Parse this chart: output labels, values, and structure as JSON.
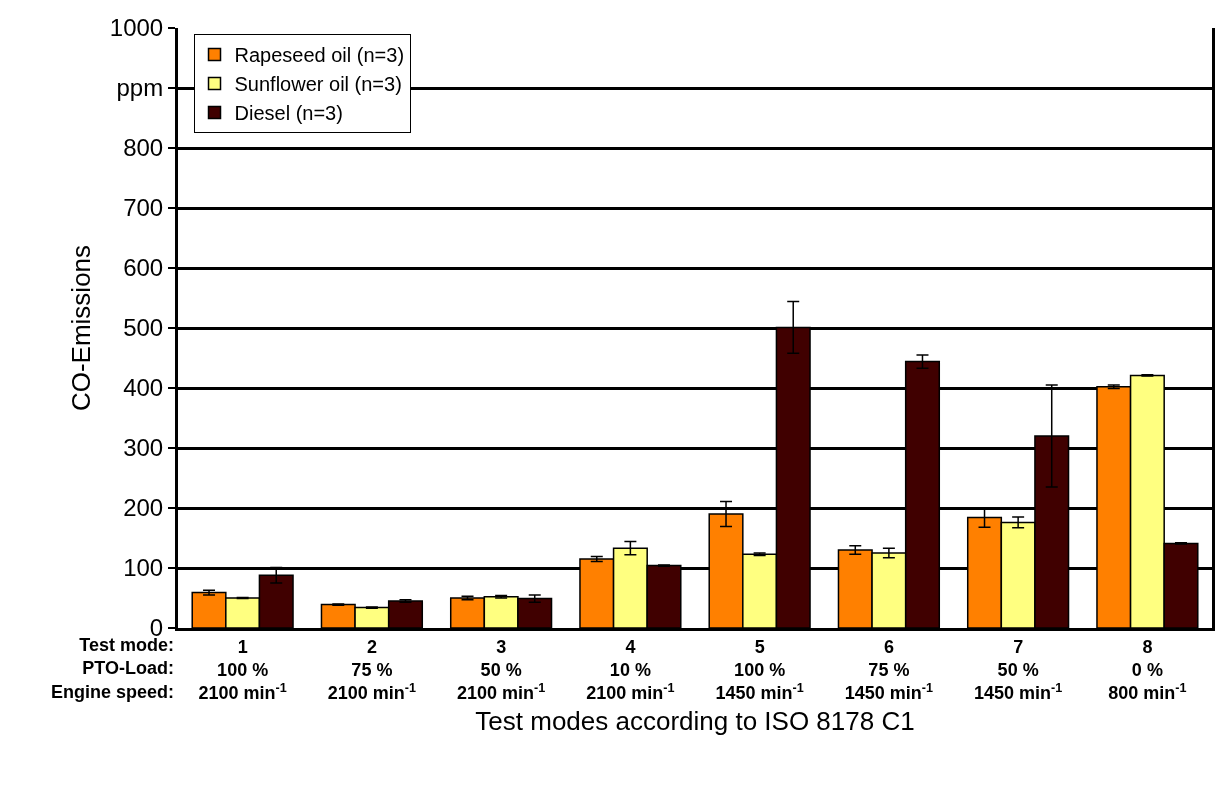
{
  "chart_data": {
    "type": "bar",
    "xlabel": "Test modes according to ISO 8178 C1",
    "ylabel": "CO-Emissions",
    "categories": [
      "1\n100 %\n2100 min$^{-1}$",
      "2\n75 %\n2100 min$^{-1}$",
      "3\n50 %\n2100 min$^{-1}$",
      "4\n10 %\n2100 min$^{-1}$",
      "5\n100 %\n1450 min$^{-1}$",
      "6\n75 %\n1450 min$^{-1}$",
      "7\n50 %\n1450 min$^{-1}$",
      "8\n0 %\n800 min$^{-1}$"
    ],
    "series": [
      {
        "name": "Rapeseed oil (n=3)",
        "color": "#ff8000",
        "values": [
          59,
          39,
          50,
          115,
          190,
          130,
          184,
          402
        ],
        "errors": [
          4,
          1,
          3,
          4,
          21,
          7,
          16,
          3
        ]
      },
      {
        "name": "Sunflower oil (n=3)",
        "color": "#ffff80",
        "values": [
          50,
          34,
          52,
          133,
          123,
          125,
          176,
          421
        ],
        "errors": [
          1,
          1,
          2,
          11,
          2,
          8,
          9,
          1
        ]
      },
      {
        "name": "Diesel (n=3)",
        "color": "#400000",
        "values": [
          88,
          45,
          49,
          104,
          501,
          444,
          320,
          141
        ],
        "errors": [
          13,
          2,
          6,
          1,
          43,
          11,
          85,
          1
        ]
      }
    ],
    "ylim": [
      0,
      1000
    ],
    "yticks": [
      0,
      100,
      200,
      300,
      400,
      500,
      600,
      700,
      800,
      {
        "value": 900,
        "label": "ppm"
      },
      1000
    ],
    "annotations": [
      "Test mode:\nPTO-Load:\nEngine speed:"
    ],
    "grid": "y",
    "legend": "top left"
  }
}
